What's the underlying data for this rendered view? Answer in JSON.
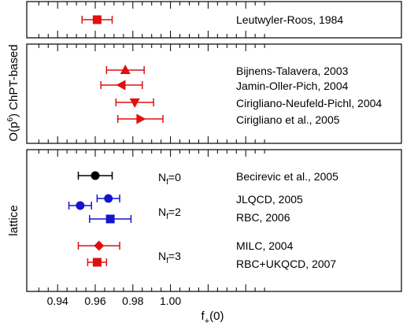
{
  "chart_data": {
    "type": "scatter",
    "xlabel": "f+(0)",
    "xlim": [
      0.93,
      1.05
    ],
    "x_ticks": [
      0.94,
      0.96,
      0.98,
      1.0
    ],
    "x_tick_labels": [
      "0.94",
      "0.96",
      "0.98",
      "1.00"
    ],
    "grid": false,
    "panels": [
      {
        "label": ""
      },
      {
        "label": "O(p⁶) ChPT-based"
      },
      {
        "label": "lattice"
      }
    ],
    "nf_labels": [
      {
        "text": "N",
        "sub": "f",
        "eq": "=0"
      },
      {
        "text": "N",
        "sub": "f",
        "eq": "=2"
      },
      {
        "text": "N",
        "sub": "f",
        "eq": "=3"
      }
    ],
    "points": [
      {
        "name": "Leutwyler-Roos, 1984",
        "panel": 0,
        "value": 0.961,
        "err_lo": 0.008,
        "err_hi": 0.008,
        "marker": "square",
        "color": "#e01010"
      },
      {
        "name": "Bijnens-Talavera, 2003",
        "panel": 1,
        "value": 0.976,
        "err_lo": 0.01,
        "err_hi": 0.01,
        "marker": "triangle-up",
        "color": "#e01010"
      },
      {
        "name": "Jamin-Oller-Pich, 2004",
        "panel": 1,
        "value": 0.974,
        "err_lo": 0.011,
        "err_hi": 0.011,
        "marker": "triangle-left",
        "color": "#e01010"
      },
      {
        "name": "Cirigliano-Neufeld-Pichl, 2004",
        "panel": 1,
        "value": 0.981,
        "err_lo": 0.01,
        "err_hi": 0.01,
        "marker": "triangle-down",
        "color": "#e01010"
      },
      {
        "name": "Cirigliano et al., 2005",
        "panel": 1,
        "value": 0.984,
        "err_lo": 0.012,
        "err_hi": 0.012,
        "marker": "triangle-right",
        "color": "#e01010"
      },
      {
        "name": "Becirevic et al., 2005",
        "panel": 2,
        "value": 0.96,
        "err_lo": 0.009,
        "err_hi": 0.009,
        "marker": "circle",
        "color": "#000000"
      },
      {
        "name": "JLQCD, 2005",
        "panel": 2,
        "value": 0.967,
        "err_lo": 0.006,
        "err_hi": 0.006,
        "marker": "circle",
        "color": "#1515d0"
      },
      {
        "name": "",
        "panel": 2,
        "value": 0.952,
        "err_lo": 0.006,
        "err_hi": 0.006,
        "marker": "circle",
        "color": "#1515d0"
      },
      {
        "name": "RBC, 2006",
        "panel": 2,
        "value": 0.968,
        "err_lo": 0.011,
        "err_hi": 0.011,
        "marker": "square",
        "color": "#1515d0"
      },
      {
        "name": "MILC, 2004",
        "panel": 2,
        "value": 0.962,
        "err_lo": 0.011,
        "err_hi": 0.011,
        "marker": "diamond",
        "color": "#e01010"
      },
      {
        "name": "RBC+UKQCD, 2007",
        "panel": 2,
        "value": 0.961,
        "err_lo": 0.005,
        "err_hi": 0.005,
        "marker": "square",
        "color": "#e01010"
      }
    ]
  }
}
